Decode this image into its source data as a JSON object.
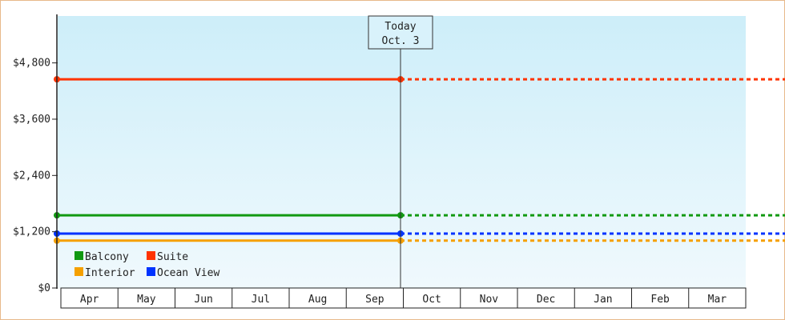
{
  "chart_data": {
    "type": "line",
    "title": "",
    "xlabel": "",
    "ylabel": "",
    "x": [
      "Apr",
      "May",
      "Jun",
      "Jul",
      "Aug",
      "Sep",
      "Oct",
      "Nov",
      "Dec",
      "Jan",
      "Feb",
      "Mar"
    ],
    "ylim": [
      0,
      5800
    ],
    "yticks": [
      0,
      1200,
      2400,
      3600,
      4800
    ],
    "ytick_labels": [
      "$0",
      "$1,200",
      "$2,400",
      "$3,600",
      "$4,800"
    ],
    "today_marker": {
      "line1": "Today",
      "line2": "Oct. 3",
      "x_month_index": 6
    },
    "solid_until": "Oct. 3",
    "dashed_after": "Oct. 3",
    "series": [
      {
        "name": "Suite",
        "value": 4450,
        "color": "#ff3300"
      },
      {
        "name": "Balcony",
        "value": 1550,
        "color": "#119911"
      },
      {
        "name": "Ocean View",
        "value": 1160,
        "color": "#0033ff"
      },
      {
        "name": "Interior",
        "value": 1010,
        "color": "#f5a000"
      }
    ],
    "legend": {
      "placement": "bottom-left",
      "rows": [
        [
          {
            "name": "Balcony",
            "color": "#119911"
          },
          {
            "name": "Suite",
            "color": "#ff3300"
          }
        ],
        [
          {
            "name": "Interior",
            "color": "#f5a000"
          },
          {
            "name": "Ocean View",
            "color": "#0033ff"
          }
        ]
      ]
    },
    "background_gradient": [
      "#cdeef9",
      "#f0f9fd"
    ],
    "grid": false
  }
}
